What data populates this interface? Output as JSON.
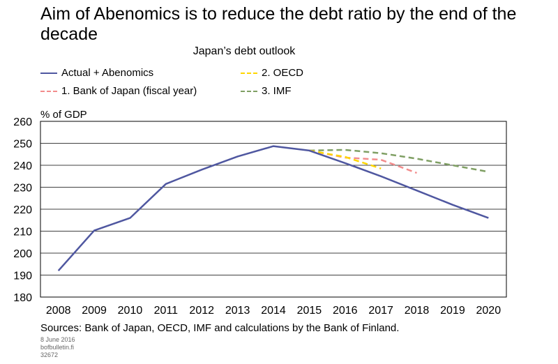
{
  "chart_data": {
    "type": "line",
    "title": "Aim of Abenomics is to reduce the debt ratio by the end of the decade",
    "subtitle": "Japan’s debt outlook",
    "ylabel": "% of GDP",
    "xlabel": "",
    "ylim": [
      180,
      260
    ],
    "yticks": [
      180,
      190,
      200,
      210,
      220,
      230,
      240,
      250,
      260
    ],
    "categories": [
      "2008",
      "2009",
      "2010",
      "2011",
      "2012",
      "2013",
      "2014",
      "2015",
      "2016",
      "2017",
      "2018",
      "2019",
      "2020"
    ],
    "grid": true,
    "legend_position": "top-left",
    "series": [
      {
        "name": "Actual + Abenomics",
        "color": "#4f57a0",
        "style": "solid",
        "values": [
          192,
          210.3,
          216,
          231.5,
          238,
          244,
          248.7,
          246.7,
          241,
          235,
          228.5,
          222,
          216
        ]
      },
      {
        "name": "2. OECD",
        "color": "#ffd600",
        "style": "dashed",
        "values": [
          null,
          null,
          null,
          null,
          null,
          null,
          null,
          246.7,
          243.8,
          238.5,
          null,
          null,
          null
        ]
      },
      {
        "name": "1. Bank of Japan (fiscal year)",
        "color": "#f28c8c",
        "style": "dashed",
        "values": [
          null,
          null,
          null,
          null,
          null,
          null,
          null,
          246.7,
          243.5,
          242.5,
          236.5,
          null,
          null
        ]
      },
      {
        "name": "3. IMF",
        "color": "#7f9f63",
        "style": "dashed",
        "values": [
          null,
          null,
          null,
          null,
          null,
          null,
          null,
          246.7,
          247,
          245.5,
          243,
          240,
          237
        ]
      }
    ]
  },
  "legend_order": [
    1,
    3,
    0,
    2
  ],
  "sources": "Sources: Bank of Japan, OECD, IMF and calculations by the Bank of Finland.",
  "date": "8 June 2016",
  "site": "bofbulletin.fi",
  "code": "32672"
}
